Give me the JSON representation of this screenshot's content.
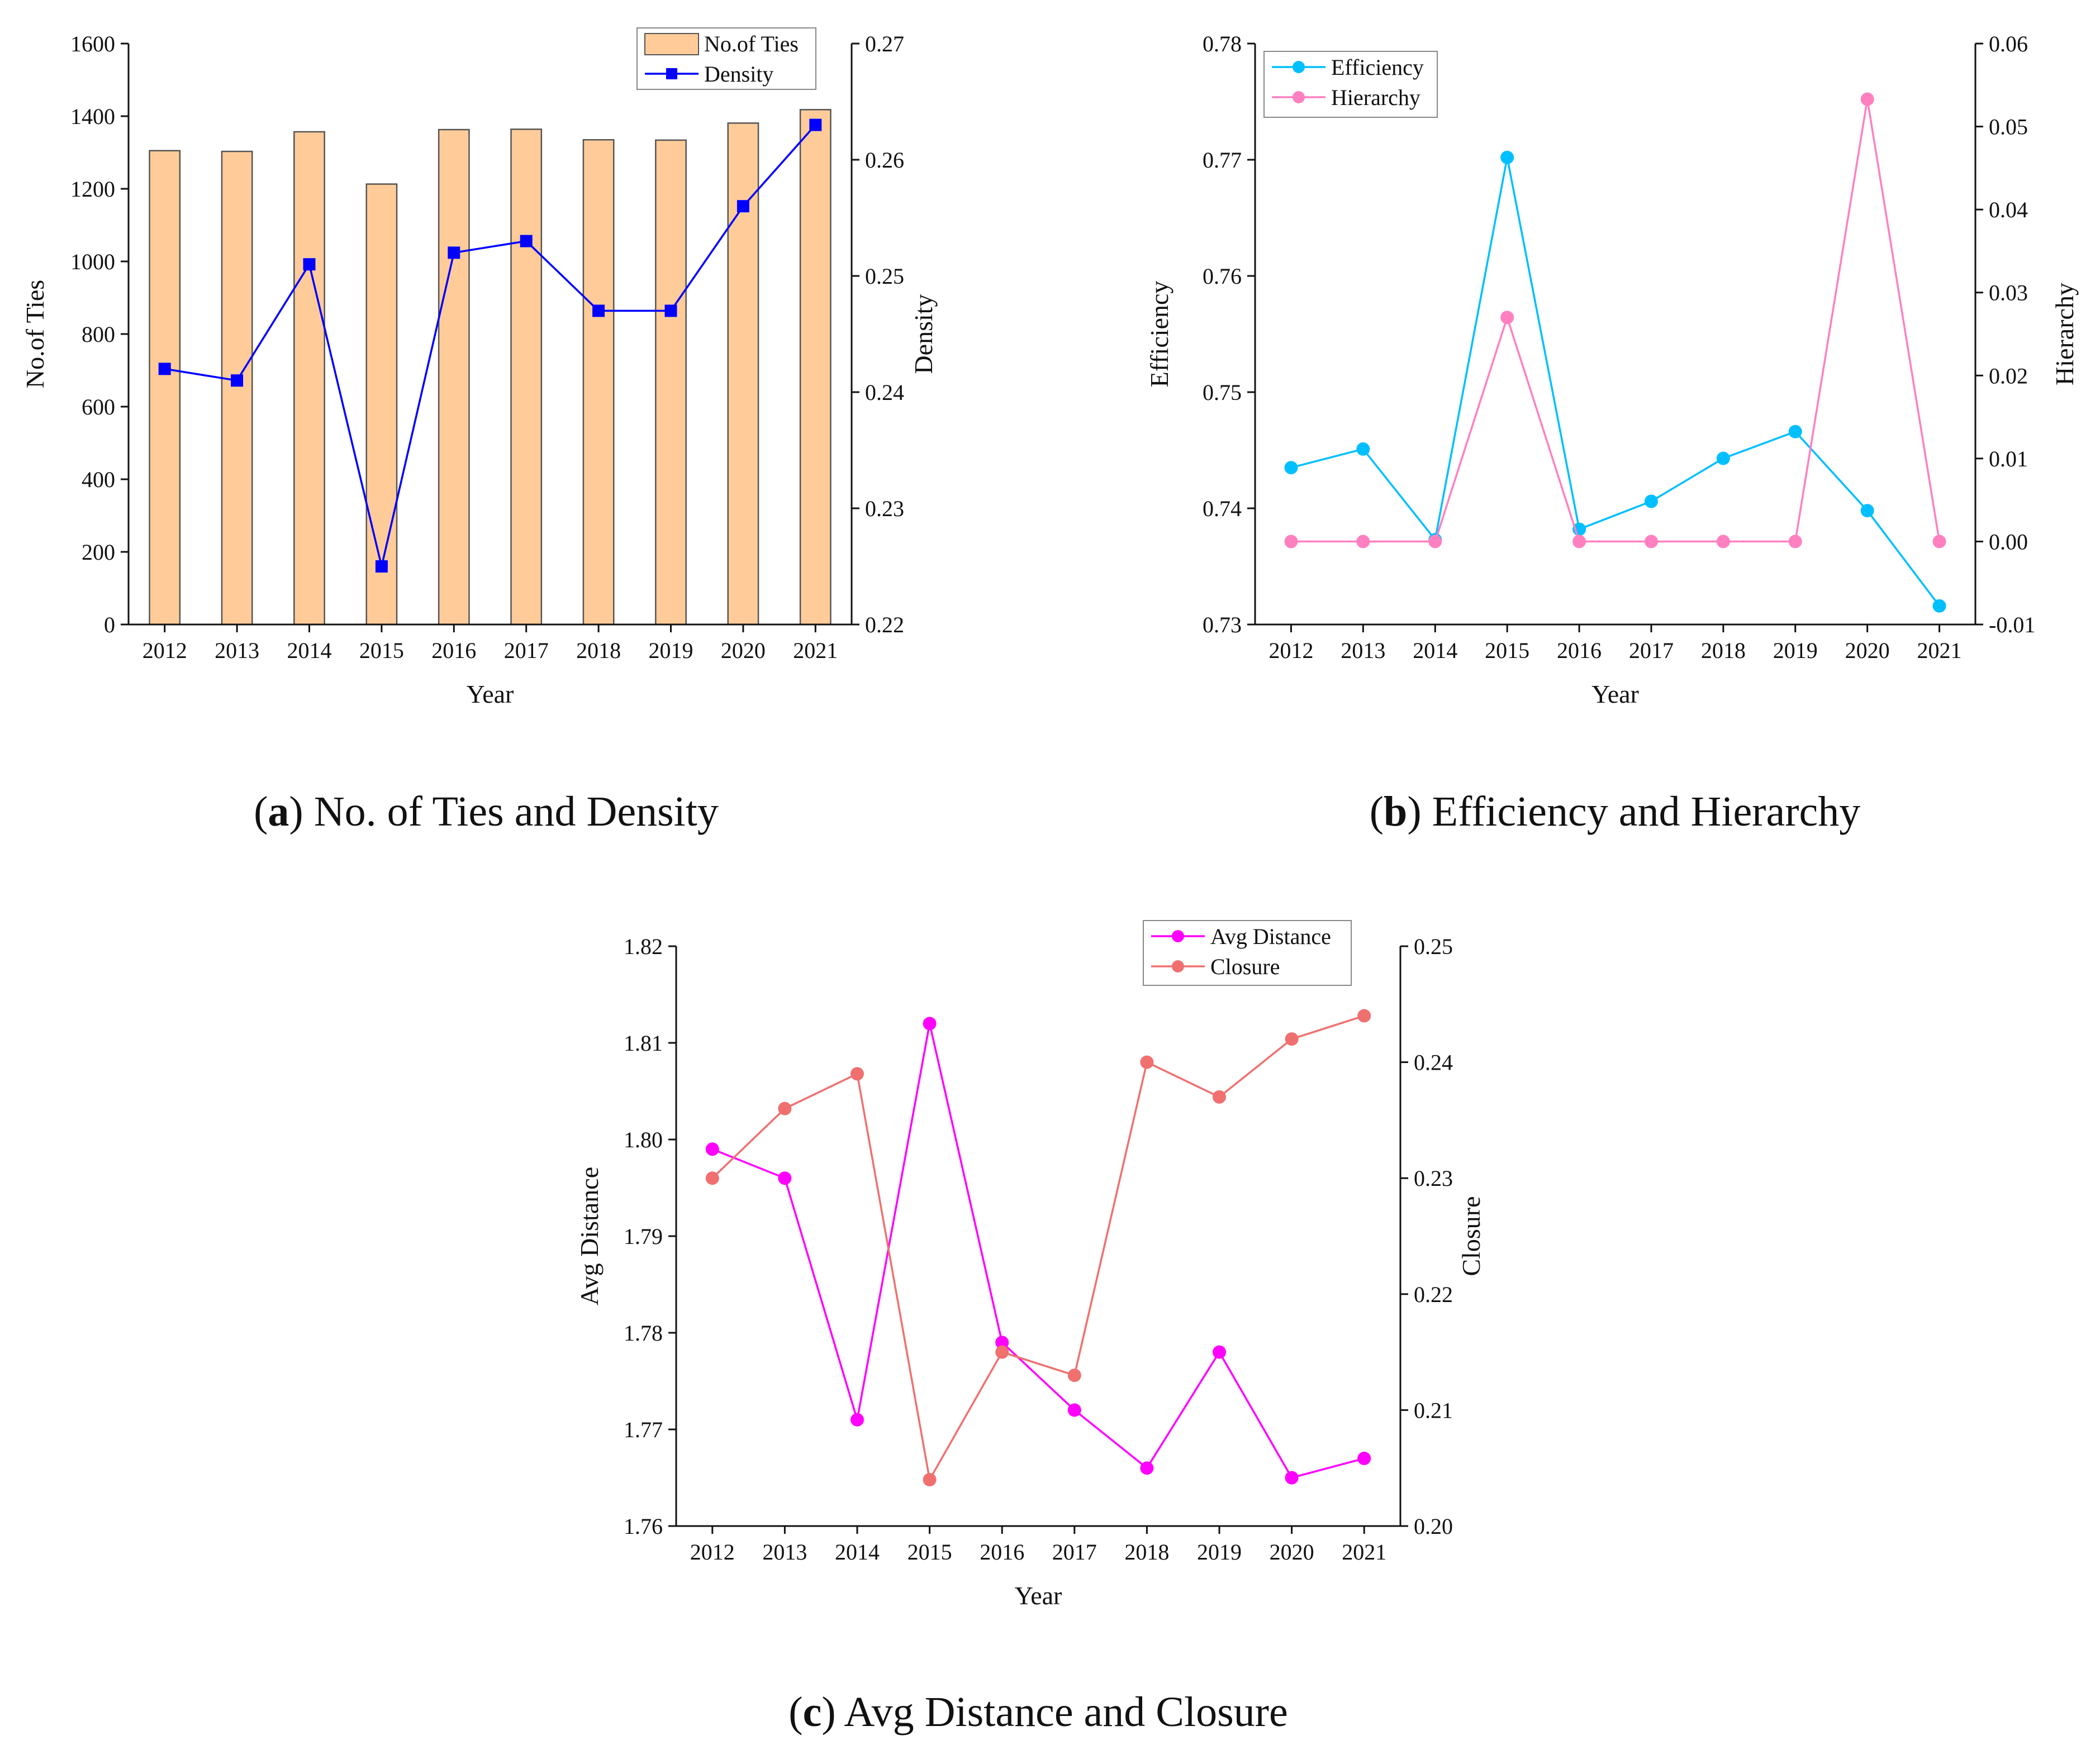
{
  "chart_data": [
    {
      "id": "a",
      "type": "bar+line",
      "caption": {
        "letter": "a",
        "text": ") No. of Ties and Density"
      },
      "categories": [
        "2012",
        "2013",
        "2014",
        "2015",
        "2016",
        "2017",
        "2018",
        "2019",
        "2020",
        "2021"
      ],
      "xlabel": "Year",
      "y_left": {
        "label": "No.of Ties",
        "ylim": [
          0,
          1600
        ],
        "ticks": [
          "0",
          "200",
          "400",
          "600",
          "800",
          "1000",
          "1200",
          "1400",
          "1600"
        ]
      },
      "y_right": {
        "label": "Density",
        "ylim": [
          0.22,
          0.27
        ],
        "ticks": [
          "0.22",
          "0.23",
          "0.24",
          "0.25",
          "0.26",
          "0.27"
        ]
      },
      "series": [
        {
          "name": "No.of Ties",
          "kind": "bar",
          "axis": "left",
          "color": "#FFCC99",
          "stroke": "#555555",
          "values": [
            1305,
            1303,
            1357,
            1213,
            1363,
            1364,
            1335,
            1334,
            1381,
            1418
          ]
        },
        {
          "name": "Density",
          "kind": "line",
          "axis": "right",
          "color": "#0000FF",
          "marker": "square",
          "values": [
            0.242,
            0.241,
            0.251,
            0.225,
            0.252,
            0.253,
            0.247,
            0.247,
            0.256,
            0.263
          ]
        }
      ]
    },
    {
      "id": "b",
      "type": "line",
      "caption": {
        "letter": "b",
        "text": ") Efficiency and Hierarchy"
      },
      "categories": [
        "2012",
        "2013",
        "2014",
        "2015",
        "2016",
        "2017",
        "2018",
        "2019",
        "2020",
        "2021"
      ],
      "xlabel": "Year",
      "y_left": {
        "label": "Efficiency",
        "ylim": [
          0.73,
          0.78
        ],
        "ticks": [
          "0.73",
          "0.74",
          "0.75",
          "0.76",
          "0.77",
          "0.78"
        ]
      },
      "y_right": {
        "label": "Hierarchy",
        "ylim": [
          -0.01,
          0.06
        ],
        "ticks": [
          "-0.01",
          "0.00",
          "0.01",
          "0.02",
          "0.03",
          "0.04",
          "0.05",
          "0.06"
        ]
      },
      "series": [
        {
          "name": "Efficiency",
          "kind": "line",
          "axis": "left",
          "color": "#00BFFF",
          "marker": "circle",
          "values": [
            0.7435,
            0.7451,
            0.7373,
            0.7702,
            0.7382,
            0.7406,
            0.7443,
            0.7466,
            0.7398,
            0.7316
          ]
        },
        {
          "name": "Hierarchy",
          "kind": "line",
          "axis": "right",
          "color": "#FF80C0",
          "marker": "circle",
          "values": [
            0.0,
            0.0,
            0.0,
            0.027,
            0.0,
            0.0,
            0.0,
            0.0,
            0.0533,
            0.0
          ]
        }
      ]
    },
    {
      "id": "c",
      "type": "line",
      "caption": {
        "letter": "c",
        "text": ") Avg Distance and Closure"
      },
      "categories": [
        "2012",
        "2013",
        "2014",
        "2015",
        "2016",
        "2017",
        "2018",
        "2019",
        "2020",
        "2021"
      ],
      "xlabel": "Year",
      "y_left": {
        "label": "Avg Distance",
        "ylim": [
          1.76,
          1.82
        ],
        "ticks": [
          "1.76",
          "1.77",
          "1.78",
          "1.79",
          "1.80",
          "1.81",
          "1.82"
        ]
      },
      "y_right": {
        "label": "Closure",
        "ylim": [
          0.2,
          0.25
        ],
        "ticks": [
          "0.20",
          "0.21",
          "0.22",
          "0.23",
          "0.24",
          "0.25"
        ]
      },
      "series": [
        {
          "name": "Avg Distance",
          "kind": "line",
          "axis": "left",
          "color": "#FF00FF",
          "marker": "circle",
          "values": [
            1.799,
            1.796,
            1.771,
            1.812,
            1.779,
            1.772,
            1.766,
            1.778,
            1.765,
            1.767
          ]
        },
        {
          "name": "Closure",
          "kind": "line",
          "axis": "right",
          "color": "#F07070",
          "marker": "circle",
          "values": [
            0.23,
            0.236,
            0.239,
            0.204,
            0.215,
            0.213,
            0.24,
            0.237,
            0.242,
            0.244
          ]
        }
      ]
    }
  ]
}
